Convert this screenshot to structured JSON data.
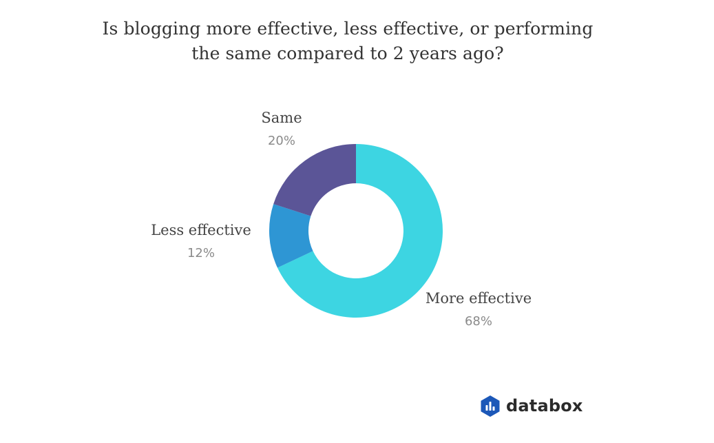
{
  "title": {
    "line1": "Is blogging more effective, less effective, or performing",
    "line2": "the same compared to 2 years ago?"
  },
  "chart_data": {
    "type": "pie",
    "style": "donut",
    "categories": [
      "More effective",
      "Less effective",
      "Same"
    ],
    "values": [
      68,
      12,
      20
    ],
    "value_labels": [
      "68%",
      "12%",
      "20%"
    ],
    "colors": [
      "#3dd5e2",
      "#2e96d4",
      "#5b5597"
    ],
    "start": "12 o'clock",
    "direction": "clockwise",
    "legend": "none (direct labels)"
  },
  "brand": {
    "name": "databox",
    "icon": "databox-logo-icon",
    "color": "#1c58b8"
  }
}
